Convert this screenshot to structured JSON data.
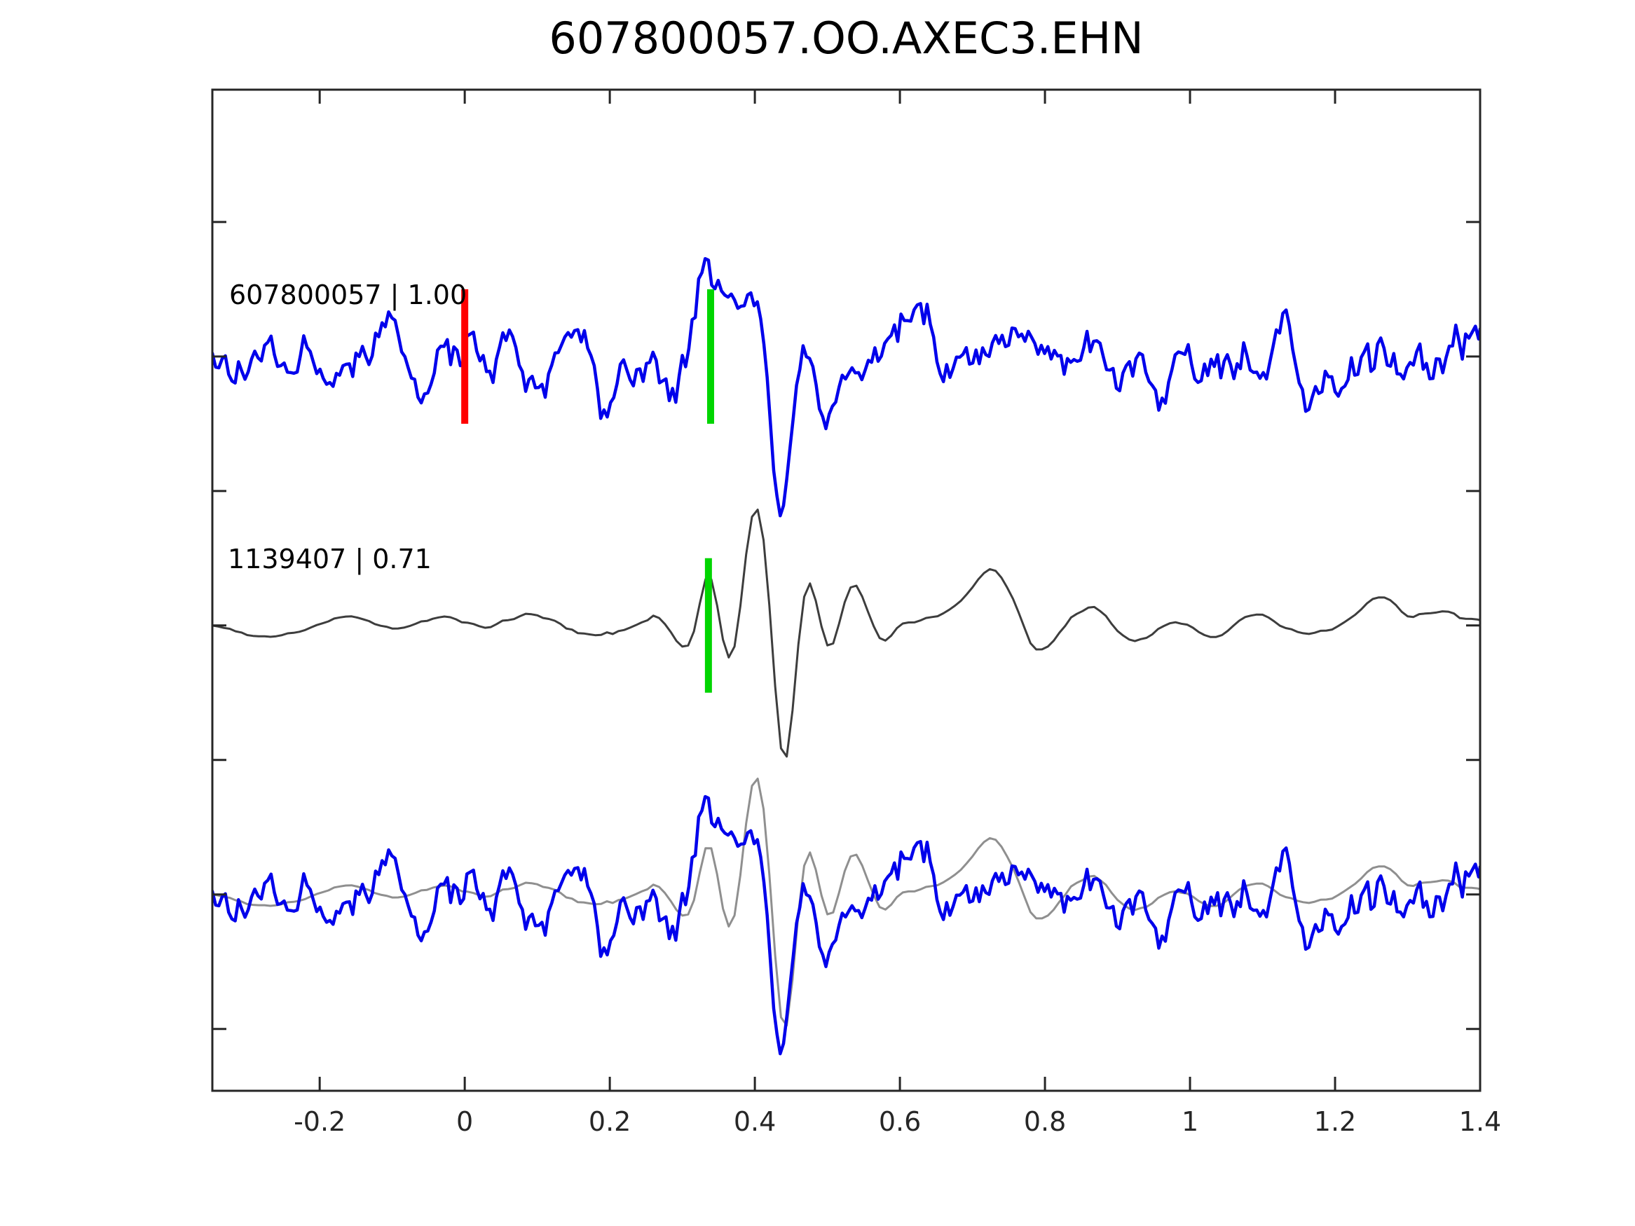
{
  "title": "607800057.OO.AXEC3.EHN",
  "colors": {
    "detection_blue": "#0000eb",
    "template_dark_gray": "#3d3d3d",
    "template_light_gray": "#8f8f8f",
    "zero_lag_red": "#ff0000",
    "pick_green": "#00d500",
    "axis": "#262626",
    "text": "#000000"
  },
  "chart_data": {
    "type": "line",
    "title": "607800057.OO.AXEC3.EHN",
    "xlabel": "",
    "ylabel": "",
    "xlim": [
      -0.348,
      1.4
    ],
    "ylim": [
      -0.73,
      2.992
    ],
    "xticks": [
      -0.2,
      0,
      0.2,
      0.4,
      0.6,
      0.8,
      1,
      1.2,
      1.4
    ],
    "xtick_labels": [
      "-0.2",
      "0",
      "0.2",
      "0.4",
      "0.6",
      "0.8",
      "1",
      "1.2",
      "1.4"
    ],
    "yticks": [
      -0.5,
      0,
      0.5,
      1,
      1.5,
      2,
      2.5
    ],
    "ytick_labels": [],
    "grid": false,
    "legend": "none",
    "tick_direction": "in",
    "annotations": [
      {
        "text": "607800057 | 1.00",
        "x": -0.325,
        "y": 2.25,
        "meaning": "detection id | cross-correlation"
      },
      {
        "text": "1139407 | 0.71",
        "x": -0.327,
        "y": 1.26,
        "meaning": "template id | cross-correlation"
      }
    ],
    "markers": [
      {
        "name": "zero-lag-marker",
        "x": 0.0,
        "y_center": 2.0,
        "half_height": 0.25,
        "color": "#ff0000"
      },
      {
        "name": "pick-marker-top",
        "x": 0.339,
        "y_center": 2.0,
        "half_height": 0.25,
        "color": "#00d500"
      },
      {
        "name": "pick-marker-middle",
        "x": 0.336,
        "y_center": 1.0,
        "half_height": 0.25,
        "color": "#00d500"
      }
    ],
    "series": [
      {
        "name": "template-1139407-middle",
        "color": "#3d3d3d",
        "stroke_px": 3,
        "baseline": 1,
        "synth": {
          "seed": 99,
          "x0": -0.348,
          "dt": 0.008,
          "n": 220,
          "win": 7,
          "passes": 2,
          "noise_amp": 0.085,
          "envelope": [
            [
              -0.348,
              0.55
            ],
            [
              -0.15,
              0.7
            ],
            [
              0.05,
              0.8
            ],
            [
              0.2,
              1.1
            ],
            [
              0.28,
              1.2
            ],
            [
              0.35,
              0.9
            ],
            [
              0.4,
              0.5
            ],
            [
              0.45,
              0.5
            ],
            [
              0.5,
              0.8
            ],
            [
              0.6,
              1.0
            ],
            [
              1.4,
              0.9
            ]
          ],
          "features": [
            [
              0.302,
              -0.1,
              0.016
            ],
            [
              0.336,
              0.21,
              0.012
            ],
            [
              0.368,
              -0.15,
              0.012
            ],
            [
              0.402,
              0.43,
              0.016
            ],
            [
              0.44,
              -0.56,
              0.0135
            ],
            [
              0.473,
              0.17,
              0.012
            ],
            [
              0.503,
              -0.09,
              0.011
            ],
            [
              0.537,
              0.2,
              0.016
            ],
            [
              0.578,
              -0.06,
              0.014
            ],
            [
              0.73,
              0.13,
              0.025
            ],
            [
              0.79,
              -0.1,
              0.018
            ],
            [
              1.0,
              0.05,
              0.03
            ],
            [
              1.27,
              0.06,
              0.02
            ]
          ]
        }
      },
      {
        "name": "detection-607800057-top",
        "color": "#0000eb",
        "stroke_px": 4.5,
        "baseline": 2,
        "synth": {
          "seed": 20240607,
          "x0": -0.348,
          "dt": 0.0045,
          "n": 390,
          "win": 7,
          "passes": 1,
          "noise_amp": 0.235,
          "envelope": [
            [
              -0.348,
              0.8
            ],
            [
              -0.18,
              0.9
            ],
            [
              -0.08,
              1.1
            ],
            [
              0.15,
              1.0
            ],
            [
              0.32,
              1.1
            ],
            [
              0.41,
              0.9
            ],
            [
              0.43,
              0.45
            ],
            [
              0.45,
              0.55
            ],
            [
              0.47,
              0.9
            ],
            [
              1.4,
              1.0
            ]
          ],
          "features": [
            [
              0.332,
              0.22,
              0.012
            ],
            [
              0.398,
              0.24,
              0.014
            ],
            [
              0.435,
              -0.62,
              0.013
            ],
            [
              0.468,
              0.1,
              0.01
            ],
            [
              0.495,
              -0.22,
              0.011
            ],
            [
              0.6,
              0.05,
              0.02
            ],
            [
              0.93,
              0.06,
              0.02
            ],
            [
              1.22,
              0.08,
              0.015
            ]
          ]
        }
      },
      {
        "name": "template-1139407-bottom-overlay",
        "color": "#8f8f8f",
        "stroke_px": 3,
        "baseline": 0,
        "synth_ref": 0
      },
      {
        "name": "detection-607800057-bottom-overlay",
        "color": "#0000eb",
        "stroke_px": 4.5,
        "baseline": 0,
        "synth_ref": 1
      }
    ]
  }
}
